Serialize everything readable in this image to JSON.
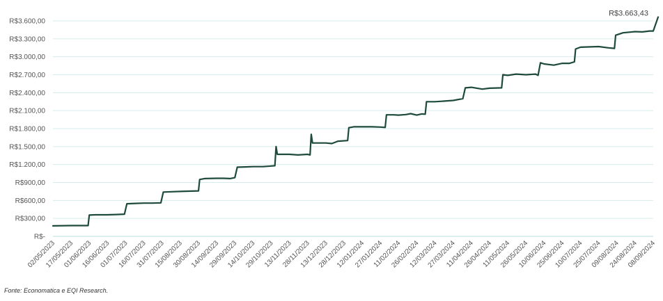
{
  "chart_data": {
    "type": "line",
    "title": "",
    "xlabel": "",
    "ylabel": "",
    "ylim": [
      0,
      3600
    ],
    "y_ticks": [
      {
        "value": 0,
        "label": "R$-"
      },
      {
        "value": 300,
        "label": "R$300,00"
      },
      {
        "value": 600,
        "label": "R$600,00"
      },
      {
        "value": 900,
        "label": "R$900,00"
      },
      {
        "value": 1200,
        "label": "R$1.200,00"
      },
      {
        "value": 1500,
        "label": "R$1.500,00"
      },
      {
        "value": 1800,
        "label": "R$1.800,00"
      },
      {
        "value": 2100,
        "label": "R$2.100,00"
      },
      {
        "value": 2400,
        "label": "R$2.400,00"
      },
      {
        "value": 2700,
        "label": "R$2.700,00"
      },
      {
        "value": 3000,
        "label": "R$3.000,00"
      },
      {
        "value": 3300,
        "label": "R$3.300,00"
      },
      {
        "value": 3600,
        "label": "R$3.600,00"
      }
    ],
    "x_ticks": [
      "02/05/2023",
      "17/05/2023",
      "01/06/2023",
      "16/06/2023",
      "01/07/2023",
      "16/07/2023",
      "31/07/2023",
      "15/08/2023",
      "30/08/2023",
      "14/09/2023",
      "29/09/2023",
      "14/10/2023",
      "29/10/2023",
      "13/11/2023",
      "28/11/2023",
      "13/12/2023",
      "28/12/2023",
      "12/01/2024",
      "27/01/2024",
      "11/02/2024",
      "26/02/2024",
      "12/03/2024",
      "27/03/2024",
      "11/04/2024",
      "26/04/2024",
      "11/05/2024",
      "26/05/2024",
      "10/06/2024",
      "25/06/2024",
      "10/07/2024",
      "25/07/2024",
      "09/08/2024",
      "24/08/2024",
      "08/09/2024"
    ],
    "grid": true,
    "line_color": "#1d4a3a",
    "grid_color": "#d6ecec",
    "series": [
      {
        "points": [
          [
            "02/05/2023",
            175
          ],
          [
            "17/05/2023",
            180
          ],
          [
            "31/05/2023",
            180
          ],
          [
            "01/06/2023",
            355
          ],
          [
            "06/06/2023",
            360
          ],
          [
            "16/06/2023",
            360
          ],
          [
            "23/06/2023",
            365
          ],
          [
            "30/06/2023",
            370
          ],
          [
            "02/07/2023",
            545
          ],
          [
            "09/07/2023",
            550
          ],
          [
            "16/07/2023",
            555
          ],
          [
            "23/07/2023",
            555
          ],
          [
            "30/07/2023",
            560
          ],
          [
            "01/08/2023",
            740
          ],
          [
            "08/08/2023",
            745
          ],
          [
            "15/08/2023",
            750
          ],
          [
            "22/08/2023",
            755
          ],
          [
            "30/08/2023",
            760
          ],
          [
            "31/08/2023",
            950
          ],
          [
            "04/09/2023",
            965
          ],
          [
            "14/09/2023",
            970
          ],
          [
            "20/09/2023",
            970
          ],
          [
            "25/09/2023",
            965
          ],
          [
            "29/09/2023",
            980
          ],
          [
            "01/10/2023",
            1155
          ],
          [
            "08/10/2023",
            1160
          ],
          [
            "14/10/2023",
            1165
          ],
          [
            "22/10/2023",
            1165
          ],
          [
            "29/10/2023",
            1175
          ],
          [
            "01/11/2023",
            1180
          ],
          [
            "02/11/2023",
            1500
          ],
          [
            "03/11/2023",
            1370
          ],
          [
            "13/11/2023",
            1370
          ],
          [
            "20/11/2023",
            1360
          ],
          [
            "28/11/2023",
            1370
          ],
          [
            "30/11/2023",
            1360
          ],
          [
            "01/12/2023",
            1705
          ],
          [
            "02/12/2023",
            1560
          ],
          [
            "13/12/2023",
            1560
          ],
          [
            "18/12/2023",
            1550
          ],
          [
            "23/12/2023",
            1590
          ],
          [
            "31/12/2023",
            1600
          ],
          [
            "01/01/2024",
            1815
          ],
          [
            "05/01/2024",
            1830
          ],
          [
            "12/01/2024",
            1830
          ],
          [
            "20/01/2024",
            1830
          ],
          [
            "27/01/2024",
            1825
          ],
          [
            "31/01/2024",
            1820
          ],
          [
            "01/02/2024",
            2030
          ],
          [
            "07/02/2024",
            2030
          ],
          [
            "11/02/2024",
            2025
          ],
          [
            "17/02/2024",
            2035
          ],
          [
            "21/02/2024",
            2050
          ],
          [
            "26/02/2024",
            2025
          ],
          [
            "01/03/2024",
            2045
          ],
          [
            "04/03/2024",
            2040
          ],
          [
            "05/03/2024",
            2250
          ],
          [
            "12/03/2024",
            2250
          ],
          [
            "20/03/2024",
            2260
          ],
          [
            "27/03/2024",
            2270
          ],
          [
            "04/04/2024",
            2300
          ],
          [
            "06/04/2024",
            2480
          ],
          [
            "11/04/2024",
            2490
          ],
          [
            "20/04/2024",
            2460
          ],
          [
            "26/04/2024",
            2475
          ],
          [
            "06/05/2024",
            2480
          ],
          [
            "07/05/2024",
            2700
          ],
          [
            "11/05/2024",
            2690
          ],
          [
            "18/05/2024",
            2710
          ],
          [
            "26/05/2024",
            2700
          ],
          [
            "03/06/2024",
            2710
          ],
          [
            "05/06/2024",
            2690
          ],
          [
            "07/06/2024",
            2900
          ],
          [
            "10/06/2024",
            2880
          ],
          [
            "18/06/2024",
            2860
          ],
          [
            "25/06/2024",
            2890
          ],
          [
            "01/07/2024",
            2890
          ],
          [
            "05/07/2024",
            2915
          ],
          [
            "06/07/2024",
            3130
          ],
          [
            "10/07/2024",
            3160
          ],
          [
            "25/07/2024",
            3170
          ],
          [
            "02/08/2024",
            3150
          ],
          [
            "07/08/2024",
            3140
          ],
          [
            "08/08/2024",
            3360
          ],
          [
            "14/08/2024",
            3400
          ],
          [
            "24/08/2024",
            3420
          ],
          [
            "30/08/2024",
            3415
          ],
          [
            "05/09/2024",
            3430
          ],
          [
            "08/09/2024",
            3430
          ],
          [
            "12/09/2024",
            3663.43
          ]
        ]
      }
    ],
    "annotations": [
      {
        "text": "R$3.663,43"
      }
    ]
  },
  "source_text": "Fonte: Economatica e EQI Research."
}
